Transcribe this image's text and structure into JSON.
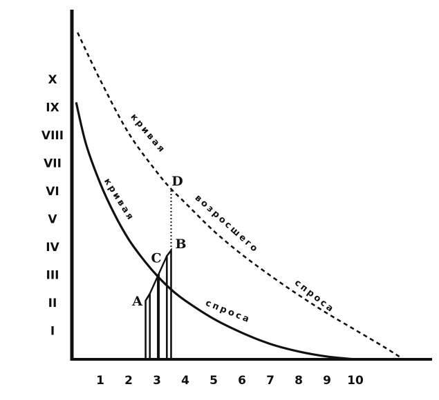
{
  "chart_data": {
    "type": "line",
    "x_ticks": [
      "1",
      "2",
      "3",
      "4",
      "5",
      "6",
      "7",
      "8",
      "9",
      "10"
    ],
    "y_ticks": [
      "I",
      "II",
      "III",
      "IV",
      "V",
      "VI",
      "VII",
      "VIII",
      "IX",
      "X"
    ],
    "curves": [
      {
        "label": "кривая спроса",
        "label_parts": [
          "кривая",
          "спроса"
        ],
        "style": "solid",
        "x": [
          0.15,
          0.5,
          1,
          1.5,
          2,
          2.5,
          3,
          3.5,
          4,
          5,
          6,
          7,
          8,
          9,
          10
        ],
        "y": [
          9.2,
          7.7,
          6.3,
          5.2,
          4.3,
          3.6,
          3.0,
          2.5,
          2.1,
          1.45,
          0.95,
          0.55,
          0.28,
          0.1,
          0
        ]
      },
      {
        "label": "кривая возросшего спроса",
        "label_parts": [
          "кривая",
          "возросшего",
          "спроса"
        ],
        "style": "dashed",
        "x": [
          0.2,
          1,
          2,
          3,
          3.5,
          4,
          5,
          6,
          7,
          8,
          9,
          10,
          11,
          11.7
        ],
        "y": [
          11.7,
          10.0,
          8.1,
          6.7,
          6.1,
          5.6,
          4.6,
          3.75,
          3.0,
          2.3,
          1.65,
          1.05,
          0.45,
          0
        ]
      }
    ],
    "points": [
      {
        "label": "A",
        "x": 2.6,
        "y": 2.1
      },
      {
        "label": "C",
        "x": 3.05,
        "y": 3.05
      },
      {
        "label": "B",
        "x": 3.5,
        "y": 3.9
      },
      {
        "label": "D",
        "x": 3.5,
        "y": 6.1
      }
    ]
  }
}
